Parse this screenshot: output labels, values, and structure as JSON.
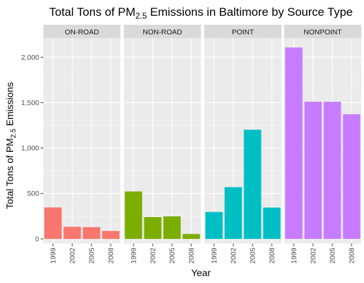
{
  "chart_data": {
    "type": "bar",
    "title_prefix": "Total Tons of PM",
    "title_subscript": "2.5",
    "title_suffix": " Emissions in Baltimore by Source Type",
    "xlabel": "Year",
    "ylabel_prefix": "Total Tons of PM",
    "ylabel_subscript": "2.5",
    "ylabel_suffix": " Emissions",
    "categories": [
      "1999",
      "2002",
      "2005",
      "2008"
    ],
    "ylim": [
      -50,
      2210
    ],
    "yticks": [
      0,
      500,
      1000,
      1500,
      2000
    ],
    "ytick_labels": [
      "0",
      "500",
      "1,000",
      "1,500",
      "2,000"
    ],
    "grid": true,
    "legend": "none",
    "panels": [
      {
        "name": "ON-ROAD",
        "color": "#F8766D",
        "values": [
          347,
          134,
          130,
          88
        ]
      },
      {
        "name": "NON-ROAD",
        "color": "#7CAE00",
        "values": [
          523,
          241,
          249,
          55
        ]
      },
      {
        "name": "POINT",
        "color": "#00BFC4",
        "values": [
          297,
          570,
          1202,
          345
        ]
      },
      {
        "name": "NONPOINT",
        "color": "#C77CFF",
        "values": [
          2107,
          1510,
          1509,
          1373
        ]
      }
    ]
  }
}
